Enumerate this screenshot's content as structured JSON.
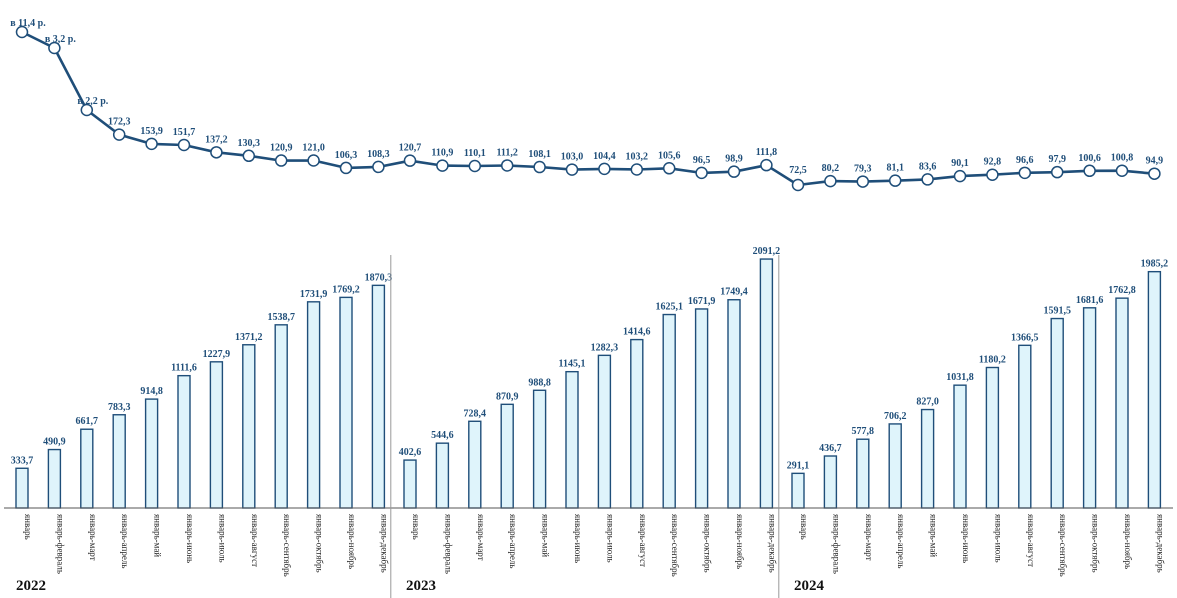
{
  "chart_data": [
    {
      "type": "bar",
      "title": "",
      "xlabel": "",
      "ylabel": "",
      "groups": [
        {
          "year": "2022",
          "categories": [
            "январь",
            "январь-февраль",
            "январь-март",
            "январь-апрель",
            "январь-май",
            "январь-июнь",
            "январь-июль",
            "январь-август",
            "январь-сентябрь",
            "январь-октябрь",
            "январь-ноябрь",
            "январь-декабрь"
          ],
          "value_labels": [
            "333,7",
            "490,9",
            "661,7",
            "783,3",
            "914,8",
            "1111,6",
            "1227,9",
            "1371,2",
            "1538,7",
            "1731,9",
            "1769,2",
            "1870,3"
          ],
          "values": [
            333.7,
            490.9,
            661.7,
            783.3,
            914.8,
            1111.6,
            1227.9,
            1371.2,
            1538.7,
            1731.9,
            1769.2,
            1870.3
          ]
        },
        {
          "year": "2023",
          "categories": [
            "январь",
            "январь-февраль",
            "январь-март",
            "январь-апрель",
            "январь-май",
            "январь-июнь",
            "январь-июль",
            "январь-август",
            "январь-сентябрь",
            "январь-октябрь",
            "январь-ноябрь",
            "январь-декабрь"
          ],
          "value_labels": [
            "402,6",
            "544,6",
            "728,4",
            "870,9",
            "988,8",
            "1145,1",
            "1282,3",
            "1414,6",
            "1625,1",
            "1671,9",
            "1749,4",
            "2091,2"
          ],
          "values": [
            402.6,
            544.6,
            728.4,
            870.9,
            988.8,
            1145.1,
            1282.3,
            1414.6,
            1625.1,
            1671.9,
            1749.4,
            2091.2
          ]
        },
        {
          "year": "2024",
          "categories": [
            "январь",
            "январь-февраль",
            "январь-март",
            "январь-апрель",
            "январь-май",
            "январь-июнь",
            "январь-июль",
            "январь-август",
            "январь-сентябрь",
            "январь-октябрь",
            "январь-ноябрь",
            "январь-декабрь"
          ],
          "value_labels": [
            "291,1",
            "436,7",
            "577,8",
            "706,2",
            "827,0",
            "1031,8",
            "1180,2",
            "1366,5",
            "1591,5",
            "1681,6",
            "1762,8",
            "1985,2"
          ],
          "values": [
            291.1,
            436.7,
            577.8,
            706.2,
            827.0,
            1031.8,
            1180.2,
            1366.5,
            1591.5,
            1681.6,
            1762.8,
            1985.2
          ]
        }
      ],
      "ylim": [
        0,
        2100
      ],
      "grid": false
    },
    {
      "type": "line",
      "title": "",
      "value_labels": [
        "в 11,4 р.",
        "в 3,2 р.",
        "в 2,2 р.",
        "172,3",
        "153,9",
        "151,7",
        "137,2",
        "130,3",
        "120,9",
        "121,0",
        "106,3",
        "108,3",
        "120,7",
        "110,9",
        "110,1",
        "111,2",
        "108,1",
        "103,0",
        "104,4",
        "103,2",
        "105,6",
        "96,5",
        "98,9",
        "111,8",
        "72,5",
        "80,2",
        "79,3",
        "81,1",
        "83,6",
        "90,1",
        "92,8",
        "96,6",
        "97,9",
        "100,6",
        "100,8",
        "94,9"
      ],
      "values": [
        1140,
        320,
        220,
        172.3,
        153.9,
        151.7,
        137.2,
        130.3,
        120.9,
        121.0,
        106.3,
        108.3,
        120.7,
        110.9,
        110.1,
        111.2,
        108.1,
        103.0,
        104.4,
        103.2,
        105.6,
        96.5,
        98.9,
        111.8,
        72.5,
        80.2,
        79.3,
        81.1,
        83.6,
        90.1,
        92.8,
        96.6,
        97.9,
        100.6,
        100.8,
        94.9
      ],
      "grid": false
    }
  ]
}
